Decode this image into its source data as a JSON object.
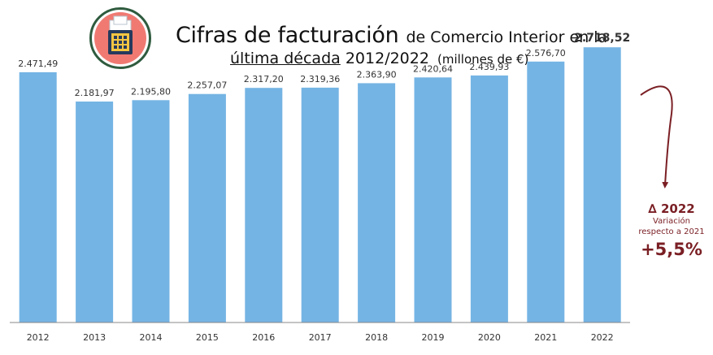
{
  "header": {
    "title_main": "Cifras de facturación",
    "title_rest": "de Comercio Interior en la",
    "title_underlined": "última década",
    "title_period": "2012/2022",
    "title_units": "(millones de €)"
  },
  "icon": {
    "name": "cash-register-icon",
    "ring_color": "#2f5b3e",
    "disk_color": "#f07a72"
  },
  "annotation": {
    "delta_label": "∆ 2022",
    "note_line1": "Variación",
    "note_line2": "respecto a 2021",
    "change": "+5,5%",
    "color": "#7a1f24"
  },
  "chart_data": {
    "type": "bar",
    "categories": [
      "2012",
      "2013",
      "2014",
      "2015",
      "2016",
      "2017",
      "2018",
      "2019",
      "2020",
      "2021",
      "2022"
    ],
    "values": [
      2471.49,
      2181.97,
      2195.8,
      2257.07,
      2317.2,
      2319.36,
      2363.9,
      2420.64,
      2439.93,
      2576.7,
      2718.52
    ],
    "data_labels": [
      "2.471,49",
      "2.181,97",
      "2.195,80",
      "2.257,07",
      "2.317,20",
      "2.319,36",
      "2.363,90",
      "2.420,64",
      "2.439,93",
      "2.576,70",
      "2.718,52"
    ],
    "highlight_last_label": true,
    "bar_color": "#74b4e4",
    "ylim": [
      0,
      2800
    ],
    "grid": false,
    "xlabel": "",
    "ylabel": ""
  }
}
